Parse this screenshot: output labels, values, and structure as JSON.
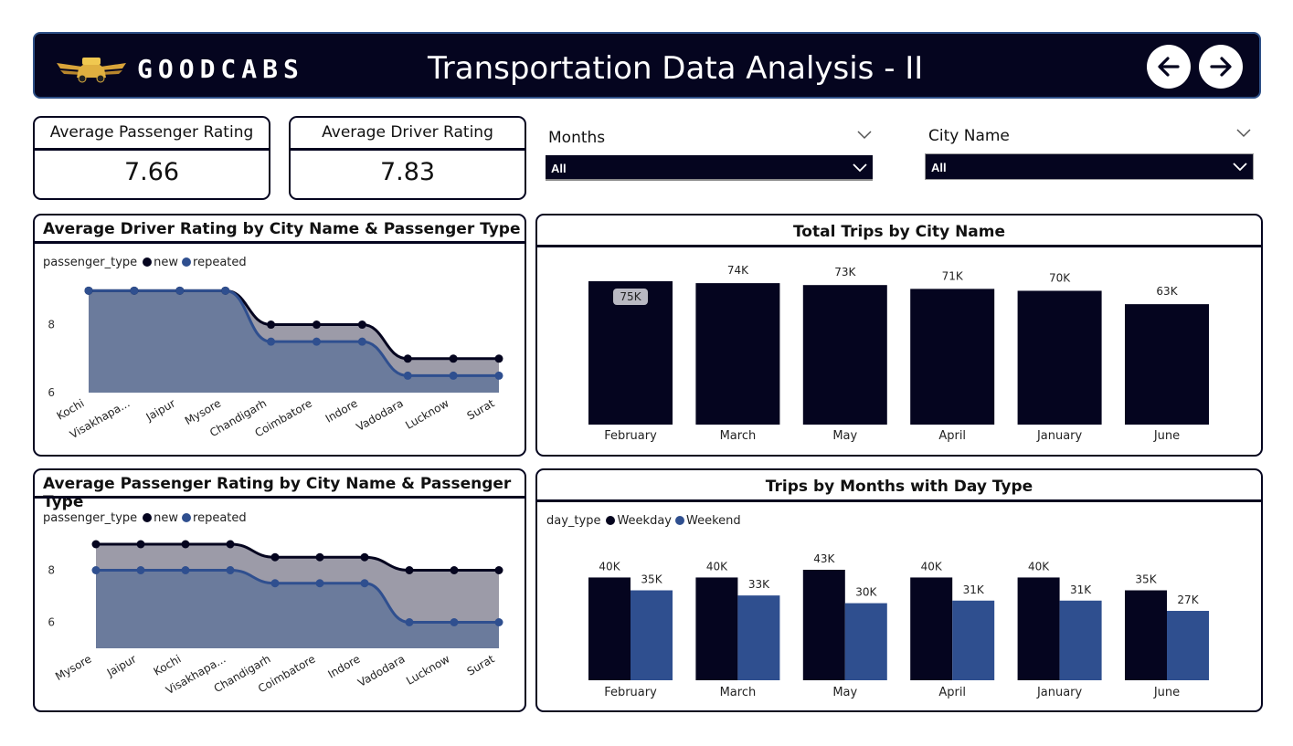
{
  "header": {
    "brand": "GOODCABS",
    "title": "Transportation Data Analysis - II",
    "nav": [
      "back-arrow-icon",
      "forward-arrow-icon"
    ]
  },
  "kpis": [
    {
      "label": "Average Passenger Rating",
      "value": "7.66"
    },
    {
      "label": "Average Driver Rating",
      "value": "7.83"
    }
  ],
  "slicers": {
    "months": {
      "label": "Months",
      "value": "All"
    },
    "city": {
      "label": "City Name",
      "value": "All"
    }
  },
  "colors": {
    "navy": "#05051f",
    "blue": "#2f4f8f",
    "area_blue": "#6b7b9c",
    "area_gray": "#9c9ba8"
  },
  "legend": {
    "passenger_title": "passenger_type",
    "passenger_new": "new",
    "passenger_repeated": "repeated",
    "day_title": "day_type",
    "weekday": "Weekday",
    "weekend": "Weekend"
  },
  "chart_data": [
    {
      "type": "area",
      "title": "Average Driver Rating by City Name & Passenger Type",
      "categories": [
        "Kochi",
        "Visakhapa...",
        "Jaipur",
        "Mysore",
        "Chandigarh",
        "Coimbatore",
        "Indore",
        "Vadodara",
        "Lucknow",
        "Surat"
      ],
      "series": [
        {
          "name": "new",
          "values": [
            9.0,
            9.0,
            9.0,
            9.0,
            8.0,
            8.0,
            8.0,
            7.0,
            7.0,
            7.0
          ]
        },
        {
          "name": "repeated",
          "values": [
            9.0,
            9.0,
            9.0,
            9.0,
            7.5,
            7.5,
            7.5,
            6.5,
            6.5,
            6.5
          ]
        }
      ],
      "yticks": [
        "6",
        "8"
      ],
      "ylim": [
        6,
        9.6
      ]
    },
    {
      "type": "bar",
      "title": "Total Trips by City Name",
      "categories": [
        "February",
        "March",
        "May",
        "April",
        "January",
        "June"
      ],
      "values": [
        75,
        74,
        73,
        71,
        70,
        63
      ],
      "labels": [
        "75K",
        "74K",
        "73K",
        "71K",
        "70K",
        "63K"
      ],
      "ylim": [
        0,
        75
      ]
    },
    {
      "type": "area",
      "title": "Average Passenger Rating by City Name & Passenger Type",
      "categories": [
        "Mysore",
        "Jaipur",
        "Kochi",
        "Visakhapa...",
        "Chandigarh",
        "Coimbatore",
        "Indore",
        "Vadodara",
        "Lucknow",
        "Surat"
      ],
      "series": [
        {
          "name": "new",
          "values": [
            9.0,
            9.0,
            9.0,
            9.0,
            8.5,
            8.5,
            8.5,
            8.0,
            8.0,
            8.0
          ]
        },
        {
          "name": "repeated",
          "values": [
            8.0,
            8.0,
            8.0,
            8.0,
            7.5,
            7.5,
            7.5,
            6.0,
            6.0,
            6.0
          ]
        }
      ],
      "yticks": [
        "6",
        "8"
      ],
      "ylim": [
        5.0,
        9.0
      ]
    },
    {
      "type": "bar",
      "title": "Trips by Months with Day Type",
      "categories": [
        "February",
        "March",
        "May",
        "April",
        "January",
        "June"
      ],
      "series": [
        {
          "name": "Weekday",
          "values": [
            40,
            40,
            43,
            40,
            40,
            35
          ],
          "labels": [
            "40K",
            "40K",
            "43K",
            "40K",
            "40K",
            "35K"
          ]
        },
        {
          "name": "Weekend",
          "values": [
            35,
            33,
            30,
            31,
            31,
            27
          ],
          "labels": [
            "35K",
            "33K",
            "30K",
            "31K",
            "31K",
            "27K"
          ]
        }
      ],
      "ylim": [
        0,
        43
      ]
    }
  ]
}
